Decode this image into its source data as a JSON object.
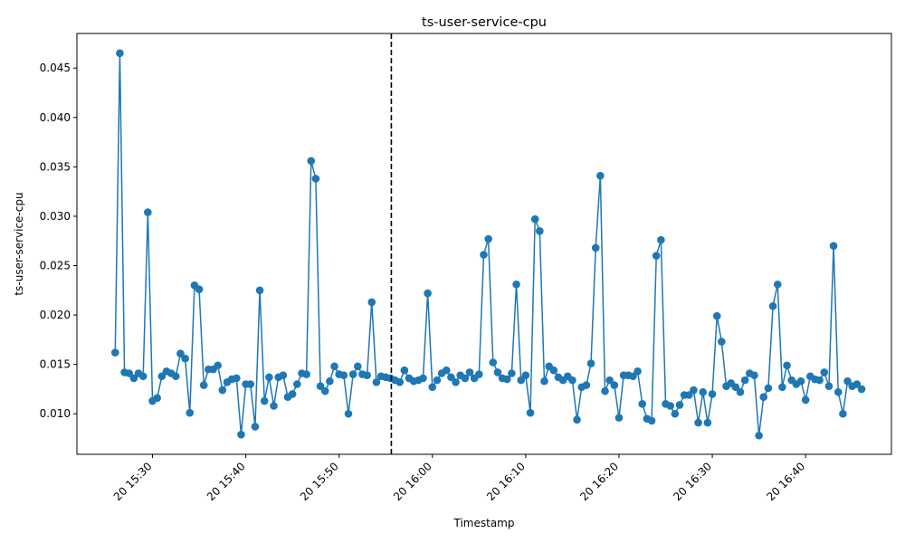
{
  "chart_data": {
    "type": "line",
    "title": "ts-user-service-cpu",
    "xlabel": "Timestamp",
    "ylabel": "ts-user-service-cpu",
    "x_start": "2023-01-20T15:26:00",
    "x_interval_seconds": 30,
    "xlim": [
      "2023-01-20T15:21:54",
      "2023-01-20T16:49:12"
    ],
    "ylim": [
      0.0059,
      0.0485
    ],
    "xticks": [
      {
        "time": "2023-01-20T15:30:00",
        "label": "20 15:30"
      },
      {
        "time": "2023-01-20T15:40:00",
        "label": "20 15:40"
      },
      {
        "time": "2023-01-20T15:50:00",
        "label": "20 15:50"
      },
      {
        "time": "2023-01-20T16:00:00",
        "label": "20 16:00"
      },
      {
        "time": "2023-01-20T16:10:00",
        "label": "20 16:10"
      },
      {
        "time": "2023-01-20T16:20:00",
        "label": "20 16:20"
      },
      {
        "time": "2023-01-20T16:30:00",
        "label": "20 16:30"
      },
      {
        "time": "2023-01-20T16:40:00",
        "label": "20 16:40"
      }
    ],
    "yticks": [
      {
        "value": 0.01,
        "label": "0.010"
      },
      {
        "value": 0.015,
        "label": "0.015"
      },
      {
        "value": 0.02,
        "label": "0.020"
      },
      {
        "value": 0.025,
        "label": "0.025"
      },
      {
        "value": 0.03,
        "label": "0.030"
      },
      {
        "value": 0.035,
        "label": "0.035"
      },
      {
        "value": 0.04,
        "label": "0.040"
      },
      {
        "value": 0.045,
        "label": "0.045"
      }
    ],
    "vline": {
      "time": "2023-01-20T15:55:36",
      "style": "dashed",
      "color": "#000000"
    },
    "series": [
      {
        "color": "#1f77b4",
        "values": [
          0.0162,
          0.0465,
          0.0142,
          0.0141,
          0.0136,
          0.0141,
          0.0138,
          0.0304,
          0.0113,
          0.0116,
          0.0138,
          0.0143,
          0.0141,
          0.0138,
          0.0161,
          0.0156,
          0.0101,
          0.023,
          0.0226,
          0.0129,
          0.0145,
          0.0145,
          0.0149,
          0.0124,
          0.0132,
          0.0135,
          0.0136,
          0.0079,
          0.013,
          0.013,
          0.0087,
          0.0225,
          0.0113,
          0.0137,
          0.0108,
          0.0137,
          0.0139,
          0.0117,
          0.012,
          0.013,
          0.0141,
          0.014,
          0.0356,
          0.0338,
          0.0128,
          0.0123,
          0.0133,
          0.0148,
          0.014,
          0.0139,
          0.01,
          0.014,
          0.0148,
          0.014,
          0.0139,
          0.0213,
          0.0132,
          0.0138,
          0.0137,
          0.0136,
          0.0134,
          0.0132,
          0.0144,
          0.0136,
          0.0133,
          0.0134,
          0.0136,
          0.0222,
          0.0127,
          0.0134,
          0.0141,
          0.0144,
          0.0137,
          0.0132,
          0.0139,
          0.0136,
          0.0142,
          0.0136,
          0.014,
          0.0261,
          0.0277,
          0.0152,
          0.0142,
          0.0136,
          0.0135,
          0.0141,
          0.0231,
          0.0134,
          0.0139,
          0.0101,
          0.0297,
          0.0285,
          0.0133,
          0.0148,
          0.0144,
          0.0137,
          0.0134,
          0.0138,
          0.0134,
          0.0094,
          0.0127,
          0.0129,
          0.0151,
          0.0268,
          0.0341,
          0.0123,
          0.0134,
          0.0129,
          0.0096,
          0.0139,
          0.0139,
          0.0138,
          0.0143,
          0.011,
          0.0095,
          0.0093,
          0.026,
          0.0276,
          0.011,
          0.0108,
          0.01,
          0.0109,
          0.0119,
          0.0119,
          0.0124,
          0.0091,
          0.0122,
          0.0091,
          0.012,
          0.0199,
          0.0173,
          0.0128,
          0.0131,
          0.0127,
          0.0122,
          0.0134,
          0.0141,
          0.0139,
          0.0078,
          0.0117,
          0.0126,
          0.0209,
          0.0231,
          0.0127,
          0.0149,
          0.0134,
          0.013,
          0.0133,
          0.0114,
          0.0138,
          0.0135,
          0.0134,
          0.0142,
          0.0128,
          0.027,
          0.0122,
          0.01,
          0.0133,
          0.0128,
          0.013,
          0.0125
        ]
      }
    ]
  }
}
